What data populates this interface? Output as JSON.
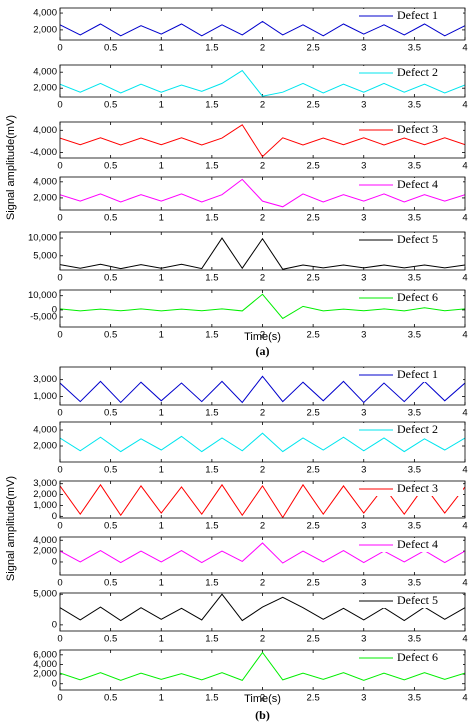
{
  "figure": {
    "panels": [
      {
        "label": "(a)",
        "ylabel": "Signal amplitude(mV)",
        "xlabel": "Time(s)"
      },
      {
        "label": "(b)",
        "ylabel": "Signal amplitude(mV)",
        "xlabel": "Time(s)"
      }
    ]
  },
  "chart_data": [
    {
      "type": "line",
      "x": [
        0,
        0.2,
        0.4,
        0.6,
        0.8,
        1,
        1.2,
        1.4,
        1.6,
        1.8,
        2,
        2.2,
        2.4,
        2.6,
        2.8,
        3,
        3.2,
        3.4,
        3.6,
        3.8,
        4
      ],
      "series": [
        {
          "name": "Defect 1",
          "color": "#0000cc",
          "values": [
            2600,
            1400,
            2700,
            1300,
            2500,
            1500,
            2700,
            1300,
            2600,
            1400,
            3000,
            1400,
            2600,
            1300,
            2700,
            1500,
            2600,
            1400,
            2700,
            1300,
            2500
          ]
        }
      ],
      "xlim": [
        0,
        4
      ],
      "xticks": [
        0,
        0.5,
        1,
        1.5,
        2,
        2.5,
        3,
        3.5,
        4
      ],
      "ylim": [
        800,
        4600
      ],
      "yticks": [
        {
          "value": 2000,
          "label": "2,000"
        },
        {
          "value": 4000,
          "label": "4,000"
        }
      ]
    },
    {
      "type": "line",
      "x": [
        0,
        0.2,
        0.4,
        0.6,
        0.8,
        1,
        1.2,
        1.4,
        1.6,
        1.8,
        2,
        2.2,
        2.4,
        2.6,
        2.8,
        3,
        3.2,
        3.4,
        3.6,
        3.8,
        4
      ],
      "series": [
        {
          "name": "Defect 2",
          "color": "#00e5ee",
          "values": [
            2500,
            1500,
            2600,
            1400,
            2500,
            1500,
            2400,
            1600,
            2600,
            4200,
            1000,
            1500,
            2600,
            1400,
            2500,
            1500,
            2600,
            1500,
            2500,
            1400,
            2400
          ]
        }
      ],
      "xlim": [
        0,
        4
      ],
      "xticks": [
        0,
        0.5,
        1,
        1.5,
        2,
        2.5,
        3,
        3.5,
        4
      ],
      "ylim": [
        900,
        4900
      ],
      "yticks": [
        {
          "value": 2000,
          "label": "2,000"
        },
        {
          "value": 4000,
          "label": "4,000"
        }
      ]
    },
    {
      "type": "line",
      "x": [
        0,
        0.2,
        0.4,
        0.6,
        0.8,
        1,
        1.2,
        1.4,
        1.6,
        1.8,
        2,
        2.2,
        2.4,
        2.6,
        2.8,
        3,
        3.2,
        3.4,
        3.6,
        3.8,
        4
      ],
      "series": [
        {
          "name": "Defect 3",
          "color": "#ff0000",
          "values": [
            1200,
            -1200,
            1300,
            -1300,
            1200,
            -1200,
            1300,
            -1300,
            1200,
            6000,
            -5500,
            1300,
            -1300,
            1200,
            -1200,
            1300,
            -1300,
            1200,
            -1200,
            1300,
            -1200
          ]
        }
      ],
      "xlim": [
        0,
        4
      ],
      "xticks": [
        0,
        0.5,
        1,
        1.5,
        2,
        2.5,
        3,
        3.5,
        4
      ],
      "ylim": [
        -6000,
        7000
      ],
      "yticks": [
        {
          "value": -4000,
          "label": "-4,000"
        },
        {
          "value": 4000,
          "label": "4,000"
        }
      ]
    },
    {
      "type": "line",
      "x": [
        0,
        0.2,
        0.4,
        0.6,
        0.8,
        1,
        1.2,
        1.4,
        1.6,
        1.8,
        2,
        2.2,
        2.4,
        2.6,
        2.8,
        3,
        3.2,
        3.4,
        3.6,
        3.8,
        4
      ],
      "series": [
        {
          "name": "Defect 4",
          "color": "#ff00ff",
          "values": [
            2400,
            1600,
            2500,
            1500,
            2400,
            1600,
            2500,
            1500,
            2400,
            4300,
            1600,
            900,
            2500,
            1500,
            2400,
            1600,
            2500,
            1500,
            2400,
            1600,
            2400
          ]
        }
      ],
      "xlim": [
        0,
        4
      ],
      "xticks": [
        0,
        0.5,
        1,
        1.5,
        2,
        2.5,
        3,
        3.5,
        4
      ],
      "ylim": [
        500,
        4600
      ],
      "yticks": [
        {
          "value": 2000,
          "label": "2,000"
        },
        {
          "value": 4000,
          "label": "4,000"
        }
      ]
    },
    {
      "type": "line",
      "x": [
        0,
        0.2,
        0.4,
        0.6,
        0.8,
        1,
        1.2,
        1.4,
        1.6,
        1.8,
        2,
        2.2,
        2.4,
        2.6,
        2.8,
        3,
        3.2,
        3.4,
        3.6,
        3.8,
        4
      ],
      "series": [
        {
          "name": "Defect 5",
          "color": "#000000",
          "values": [
            2500,
            1500,
            2600,
            1400,
            2500,
            1500,
            2600,
            1400,
            10000,
            1500,
            9800,
            1200,
            2400,
            1600,
            2400,
            1600,
            2400,
            1600,
            2400,
            1600,
            2400
          ]
        }
      ],
      "xlim": [
        0,
        4
      ],
      "xticks": [
        0,
        0.5,
        1,
        1.5,
        2,
        2.5,
        3,
        3.5,
        4
      ],
      "ylim": [
        1000,
        11700
      ],
      "yticks": [
        {
          "value": 5000,
          "label": "5,000"
        },
        {
          "value": 10000,
          "label": "10,000"
        }
      ]
    },
    {
      "type": "line",
      "x": [
        0,
        0.2,
        0.4,
        0.6,
        0.8,
        1,
        1.2,
        1.4,
        1.6,
        1.8,
        2,
        2.2,
        2.4,
        2.6,
        2.8,
        3,
        3.2,
        3.4,
        3.6,
        3.8,
        4
      ],
      "series": [
        {
          "name": "Defect 6",
          "color": "#00ee00",
          "values": [
            700,
            -700,
            600,
            -600,
            700,
            -700,
            600,
            -600,
            700,
            -700,
            11000,
            -6000,
            2500,
            -700,
            600,
            -600,
            700,
            -700,
            1500,
            -600,
            700
          ]
        }
      ],
      "xlim": [
        0,
        4
      ],
      "xticks": [
        0,
        0.5,
        1,
        1.5,
        2,
        2.5,
        3,
        3.5,
        4
      ],
      "ylim": [
        -12000,
        14000
      ],
      "yticks": [
        {
          "value": -5000,
          "label": "-5,000"
        },
        0,
        {
          "value": 10000,
          "label": "10,000"
        }
      ]
    },
    {
      "type": "line",
      "x": [
        0,
        0.2,
        0.4,
        0.6,
        0.8,
        1,
        1.2,
        1.4,
        1.6,
        1.8,
        2,
        2.2,
        2.4,
        2.6,
        2.8,
        3,
        3.2,
        3.4,
        3.6,
        3.8,
        4
      ],
      "series": [
        {
          "name": "Defect 1",
          "color": "#0000cc",
          "values": [
            2600,
            400,
            2800,
            300,
            2700,
            500,
            2600,
            400,
            2800,
            300,
            3400,
            400,
            2700,
            500,
            2800,
            300,
            2600,
            400,
            2800,
            500,
            2600
          ]
        }
      ],
      "xlim": [
        0,
        4
      ],
      "xticks": [
        0,
        0.5,
        1,
        1.5,
        2,
        2.5,
        3,
        3.5,
        4
      ],
      "ylim": [
        0,
        4500
      ],
      "yticks": [
        {
          "value": 1000,
          "label": "1,000"
        },
        {
          "value": 3000,
          "label": "3,000"
        }
      ]
    },
    {
      "type": "line",
      "x": [
        0,
        0.2,
        0.4,
        0.6,
        0.8,
        1,
        1.2,
        1.4,
        1.6,
        1.8,
        2,
        2.2,
        2.4,
        2.6,
        2.8,
        3,
        3.2,
        3.4,
        3.6,
        3.8,
        4
      ],
      "series": [
        {
          "name": "Defect 2",
          "color": "#00e5ee",
          "values": [
            3000,
            1400,
            3100,
            1300,
            2900,
            1500,
            3200,
            1300,
            3000,
            1400,
            3600,
            1300,
            3000,
            1500,
            3100,
            1400,
            3000,
            1300,
            2900,
            1500,
            3000
          ]
        }
      ],
      "xlim": [
        0,
        4
      ],
      "xticks": [
        0,
        0.5,
        1,
        1.5,
        2,
        2.5,
        3,
        3.5,
        4
      ],
      "ylim": [
        0,
        5000
      ],
      "yticks": [
        {
          "value": 2000,
          "label": "2,000"
        },
        {
          "value": 4000,
          "label": "4,000"
        }
      ]
    },
    {
      "type": "line",
      "x": [
        0,
        0.2,
        0.4,
        0.6,
        0.8,
        1,
        1.2,
        1.4,
        1.6,
        1.8,
        2,
        2.2,
        2.4,
        2.6,
        2.8,
        3,
        3.2,
        3.4,
        3.6,
        3.8,
        4
      ],
      "series": [
        {
          "name": "Defect 3",
          "color": "#ff0000",
          "values": [
            2800,
            200,
            2900,
            100,
            2800,
            300,
            2700,
            200,
            2900,
            100,
            2800,
            -100,
            2900,
            200,
            2800,
            300,
            2700,
            200,
            2800,
            300,
            2700
          ]
        }
      ],
      "xlim": [
        0,
        4
      ],
      "xticks": [
        0,
        0.5,
        1,
        1.5,
        2,
        2.5,
        3,
        3.5,
        4
      ],
      "ylim": [
        -150,
        3250
      ],
      "yticks": [
        0,
        {
          "value": 1000,
          "label": "1,000"
        },
        {
          "value": 2000,
          "label": "2,000"
        },
        {
          "value": 3000,
          "label": "3,000"
        }
      ]
    },
    {
      "type": "line",
      "x": [
        0,
        0.2,
        0.4,
        0.6,
        0.8,
        1,
        1.2,
        1.4,
        1.6,
        1.8,
        2,
        2.2,
        2.4,
        2.6,
        2.8,
        3,
        3.2,
        3.4,
        3.6,
        3.8,
        4
      ],
      "series": [
        {
          "name": "Defect 4",
          "color": "#ff00ff",
          "values": [
            2000,
            0,
            2100,
            -100,
            2000,
            0,
            2100,
            -100,
            2000,
            100,
            3500,
            -200,
            2000,
            0,
            2100,
            -100,
            2000,
            0,
            2100,
            -100,
            2000
          ]
        }
      ],
      "xlim": [
        0,
        4
      ],
      "xticks": [
        0,
        0.5,
        1,
        1.5,
        2,
        2.5,
        3,
        3.5,
        4
      ],
      "ylim": [
        -2400,
        4600
      ],
      "yticks": [
        0,
        {
          "value": 2000,
          "label": "2,000"
        },
        {
          "value": 4000,
          "label": "4,000"
        }
      ]
    },
    {
      "type": "line",
      "x": [
        0,
        0.2,
        0.4,
        0.6,
        0.8,
        1,
        1.2,
        1.4,
        1.6,
        1.8,
        2,
        2.2,
        2.4,
        2.6,
        2.8,
        3,
        3.2,
        3.4,
        3.6,
        3.8,
        4
      ],
      "series": [
        {
          "name": "Defect 5",
          "color": "#000000",
          "values": [
            2800,
            800,
            2900,
            700,
            2800,
            900,
            2700,
            800,
            5000,
            700,
            2900,
            4500,
            2800,
            900,
            2700,
            800,
            2800,
            700,
            2900,
            900,
            2800
          ]
        }
      ],
      "xlim": [
        0,
        4
      ],
      "xticks": [
        0,
        0.5,
        1,
        1.5,
        2,
        2.5,
        3,
        3.5,
        4
      ],
      "ylim": [
        -1000,
        5200
      ],
      "yticks": [
        0,
        {
          "value": 5000,
          "label": "5,000"
        }
      ]
    },
    {
      "type": "line",
      "x": [
        0,
        0.2,
        0.4,
        0.6,
        0.8,
        1,
        1.2,
        1.4,
        1.6,
        1.8,
        2,
        2.2,
        2.4,
        2.6,
        2.8,
        3,
        3.2,
        3.4,
        3.6,
        3.8,
        4
      ],
      "series": [
        {
          "name": "Defect 6",
          "color": "#00ee00",
          "values": [
            2200,
            800,
            2300,
            700,
            2200,
            900,
            2100,
            800,
            2300,
            700,
            6500,
            800,
            2200,
            900,
            2300,
            700,
            2200,
            800,
            2300,
            900,
            2200
          ]
        }
      ],
      "xlim": [
        0,
        4
      ],
      "xticks": [
        0,
        0.5,
        1,
        1.5,
        2,
        2.5,
        3,
        3.5,
        4
      ],
      "ylim": [
        -1300,
        7000
      ],
      "yticks": [
        0,
        {
          "value": 2000,
          "label": "2,000"
        },
        {
          "value": 4000,
          "label": "4,000"
        },
        {
          "value": 6000,
          "label": "6,000"
        }
      ]
    }
  ]
}
